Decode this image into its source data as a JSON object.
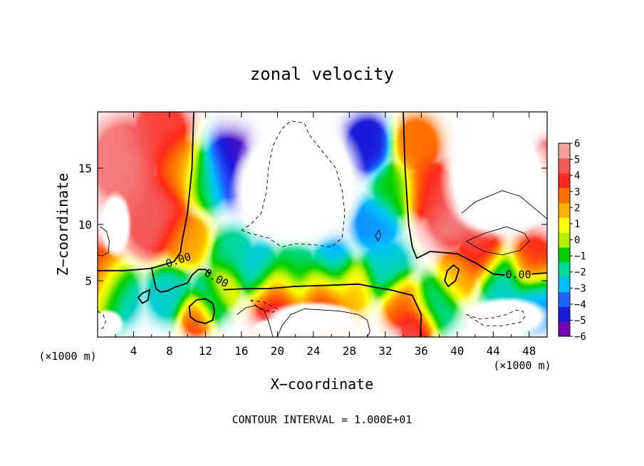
{
  "chart_data": {
    "type": "heatmap",
    "title": "zonal velocity",
    "xlabel": "X−coordinate",
    "ylabel": "Z−coordinate",
    "x_unit_left": "(×1000 m)",
    "x_unit_right": "(×1000 m)",
    "footer": "CONTOUR INTERVAL = 1.000E+01",
    "xlim": [
      0,
      50
    ],
    "ylim": [
      0,
      20
    ],
    "x_ticks": [
      4,
      8,
      12,
      16,
      20,
      24,
      28,
      32,
      36,
      40,
      44,
      48
    ],
    "x_tick_labels": [
      "4",
      "8",
      "12",
      "16",
      "20",
      "24",
      "28",
      "32",
      "36",
      "40",
      "44",
      "48"
    ],
    "y_ticks": [
      5,
      10,
      15
    ],
    "y_tick_labels": [
      "5",
      "10",
      "15"
    ],
    "colorbar": {
      "min": -6,
      "max": 6,
      "labels": [
        "6",
        "5",
        "4",
        "3",
        "2",
        "1",
        "0",
        "−1",
        "−2",
        "−3",
        "−4",
        "−5",
        "−6"
      ],
      "colors": [
        "#7a00b4",
        "#1a1ad8",
        "#1e64ff",
        "#00c0ff",
        "#00d89c",
        "#00d000",
        "#b4f000",
        "#ffff00",
        "#ffb000",
        "#ff7000",
        "#ff2a1a",
        "#f45a5a",
        "#f5a0a0"
      ]
    },
    "contour_labels": [
      "0.00",
      "0.00",
      "0.00"
    ],
    "contour_label_positions": [
      [
        9,
        6.8
      ],
      [
        13.2,
        5.2
      ],
      [
        46.8,
        5.5
      ]
    ],
    "field_sources": [
      {
        "x": 0.0,
        "z": 5.0,
        "v": 4.0,
        "r": 2.5
      },
      {
        "x": 2.0,
        "z": 3.8,
        "v": -3.0,
        "r": 2.2
      },
      {
        "x": 3.0,
        "z": 15.5,
        "v": 5.5,
        "r": 3.0
      },
      {
        "x": 6.5,
        "z": 11.0,
        "v": 5.0,
        "r": 3.0
      },
      {
        "x": 7.0,
        "z": 18.0,
        "v": 4.5,
        "r": 2.5
      },
      {
        "x": 9.0,
        "z": 15.0,
        "v": 2.5,
        "r": 2.2
      },
      {
        "x": 10.0,
        "z": 8.5,
        "v": 2.0,
        "r": 2.0
      },
      {
        "x": 12.0,
        "z": 14.0,
        "v": -1.5,
        "r": 2.2
      },
      {
        "x": 14.5,
        "z": 15.0,
        "v": -5.5,
        "r": 2.4
      },
      {
        "x": 15.0,
        "z": 7.0,
        "v": -2.0,
        "r": 2.0
      },
      {
        "x": 8.0,
        "z": 4.0,
        "v": -2.5,
        "r": 2.0
      },
      {
        "x": 12.5,
        "z": 3.5,
        "v": -3.0,
        "r": 1.8
      },
      {
        "x": 11.0,
        "z": 2.0,
        "v": 4.0,
        "r": 1.5
      },
      {
        "x": 14.0,
        "z": 4.5,
        "v": 2.0,
        "r": 1.6
      },
      {
        "x": 18.0,
        "z": 5.8,
        "v": -3.0,
        "r": 2.0
      },
      {
        "x": 22.0,
        "z": 5.5,
        "v": -2.0,
        "r": 2.2
      },
      {
        "x": 26.0,
        "z": 6.0,
        "v": -3.5,
        "r": 2.0
      },
      {
        "x": 20.0,
        "z": 3.5,
        "v": 5.0,
        "r": 2.2
      },
      {
        "x": 25.0,
        "z": 4.0,
        "v": 4.5,
        "r": 2.0
      },
      {
        "x": 28.5,
        "z": 4.5,
        "v": 2.0,
        "r": 1.8
      },
      {
        "x": 30.0,
        "z": 17.0,
        "v": -5.0,
        "r": 2.0
      },
      {
        "x": 31.0,
        "z": 10.0,
        "v": -3.5,
        "r": 2.0
      },
      {
        "x": 33.0,
        "z": 13.0,
        "v": -1.0,
        "r": 2.0
      },
      {
        "x": 35.5,
        "z": 17.0,
        "v": 3.0,
        "r": 2.0
      },
      {
        "x": 37.0,
        "z": 13.0,
        "v": 4.0,
        "r": 2.2
      },
      {
        "x": 39.5,
        "z": 11.0,
        "v": 5.5,
        "r": 2.5
      },
      {
        "x": 32.0,
        "z": 6.0,
        "v": -2.5,
        "r": 2.2
      },
      {
        "x": 34.0,
        "z": 3.0,
        "v": 3.5,
        "r": 1.8
      },
      {
        "x": 35.5,
        "z": 1.0,
        "v": 5.0,
        "r": 1.5
      },
      {
        "x": 37.5,
        "z": 3.0,
        "v": -2.0,
        "r": 2.0
      },
      {
        "x": 40.0,
        "z": 5.5,
        "v": 2.0,
        "r": 1.8
      },
      {
        "x": 42.5,
        "z": 7.5,
        "v": 4.5,
        "r": 2.0
      },
      {
        "x": 45.0,
        "z": 5.0,
        "v": -2.5,
        "r": 2.0
      },
      {
        "x": 48.5,
        "z": 6.5,
        "v": 4.0,
        "r": 2.0
      },
      {
        "x": 49.0,
        "z": 3.5,
        "v": -3.5,
        "r": 2.0
      },
      {
        "x": 50.0,
        "z": 16.0,
        "v": 5.5,
        "r": 1.2
      }
    ],
    "white_regions": [
      {
        "x": 22.5,
        "z": 14.0,
        "rx": 7.5,
        "rz": 6.5
      },
      {
        "x": 21.0,
        "z": 13.0,
        "rx": 6.5,
        "rz": 5.0
      },
      {
        "x": 44.5,
        "z": 14.0,
        "rx": 6.5,
        "rz": 5.5
      },
      {
        "x": 45.0,
        "z": 11.5,
        "rx": 5.5,
        "rz": 2.5
      },
      {
        "x": 2.0,
        "z": 10.0,
        "rx": 1.8,
        "rz": 3.0
      },
      {
        "x": 24.0,
        "z": 1.6,
        "rx": 5.5,
        "rz": 1.6
      },
      {
        "x": 20.0,
        "z": 0.8,
        "rx": 3.0,
        "rz": 0.9
      },
      {
        "x": 45.5,
        "z": 1.8,
        "rx": 5.0,
        "rz": 1.8
      },
      {
        "x": 1.0,
        "z": 1.2,
        "rx": 2.0,
        "rz": 1.3
      }
    ],
    "contours_solid": [
      [
        [
          10.7,
          20
        ],
        [
          10.5,
          15
        ],
        [
          10.0,
          11
        ],
        [
          9.4,
          8.5
        ],
        [
          9.2,
          7.5
        ],
        [
          8.5,
          6.7
        ],
        [
          6.0,
          6.1
        ],
        [
          3.0,
          5.9
        ],
        [
          0,
          5.9
        ]
      ],
      [
        [
          6.0,
          6.2
        ],
        [
          6.3,
          5.0
        ],
        [
          6.5,
          4.3
        ],
        [
          7.0,
          4.0
        ],
        [
          7.8,
          4.1
        ],
        [
          8.5,
          4.4
        ],
        [
          10.0,
          4.8
        ],
        [
          10.5,
          5.5
        ],
        [
          11.2,
          6.0
        ],
        [
          12.0,
          6.0
        ],
        [
          12.6,
          5.6
        ]
      ],
      [
        [
          14.0,
          4.2
        ],
        [
          16.5,
          4.3
        ],
        [
          19.0,
          4.3
        ],
        [
          22.0,
          4.5
        ],
        [
          26.0,
          4.6
        ],
        [
          29.0,
          4.7
        ],
        [
          31.0,
          4.4
        ],
        [
          32.5,
          4.2
        ],
        [
          33.5,
          4.0
        ],
        [
          35.0,
          3.7
        ],
        [
          36.0,
          2.0
        ],
        [
          35.9,
          0
        ]
      ],
      [
        [
          34.0,
          20
        ],
        [
          34.2,
          15
        ],
        [
          34.6,
          10
        ],
        [
          35.0,
          8.0
        ],
        [
          35.5,
          7.0
        ],
        [
          37.0,
          7.6
        ],
        [
          40.0,
          7.4
        ],
        [
          42.0,
          6.6
        ],
        [
          44.0,
          5.6
        ],
        [
          45.3,
          5.5
        ]
      ],
      [
        [
          48.3,
          5.6
        ],
        [
          50,
          5.7
        ]
      ],
      [
        [
          38.6,
          5.0
        ],
        [
          39.0,
          4.5
        ],
        [
          39.8,
          5.0
        ],
        [
          40.2,
          6.0
        ],
        [
          39.6,
          6.4
        ],
        [
          38.9,
          5.9
        ],
        [
          38.6,
          5.0
        ]
      ],
      [
        [
          4.5,
          3.5
        ],
        [
          5.0,
          3.9
        ],
        [
          5.8,
          4.2
        ],
        [
          5.6,
          3.3
        ],
        [
          5.0,
          3.0
        ],
        [
          4.5,
          3.5
        ]
      ],
      [
        [
          12.8,
          3.0
        ],
        [
          12.0,
          3.4
        ],
        [
          11.0,
          3.3
        ],
        [
          10.2,
          2.7
        ],
        [
          10.3,
          1.8
        ],
        [
          11.0,
          1.4
        ],
        [
          12.0,
          1.2
        ],
        [
          12.8,
          1.5
        ],
        [
          13.0,
          2.3
        ],
        [
          12.8,
          3.0
        ]
      ]
    ],
    "contours_thin": [
      [
        [
          0.3,
          9.8
        ],
        [
          1.0,
          9.4
        ],
        [
          1.3,
          8.5
        ],
        [
          1.2,
          7.5
        ],
        [
          0.5,
          7.2
        ],
        [
          0,
          7.3
        ]
      ],
      [
        [
          20.0,
          0
        ],
        [
          20.5,
          1.0
        ],
        [
          21.5,
          2.0
        ],
        [
          23.0,
          2.5
        ],
        [
          25.0,
          2.4
        ],
        [
          27.0,
          2.3
        ],
        [
          29.0,
          2.0
        ],
        [
          30.0,
          1.5
        ],
        [
          30.3,
          0.5
        ],
        [
          30.0,
          0
        ]
      ],
      [
        [
          40.5,
          11.0
        ],
        [
          42.0,
          12.0
        ],
        [
          43.5,
          12.5
        ],
        [
          45.0,
          13.0
        ],
        [
          47.0,
          12.5
        ],
        [
          48.5,
          11.5
        ],
        [
          50.0,
          10.5
        ]
      ],
      [
        [
          41.0,
          8.5
        ],
        [
          43.0,
          9.2
        ],
        [
          45.5,
          9.8
        ],
        [
          47.5,
          9.2
        ],
        [
          48.0,
          8.5
        ],
        [
          47.0,
          7.7
        ],
        [
          45.0,
          7.3
        ],
        [
          43.0,
          7.6
        ],
        [
          41.0,
          8.5
        ]
      ],
      [
        [
          31.2,
          8.5
        ],
        [
          31.5,
          9.0
        ],
        [
          31.3,
          9.5
        ],
        [
          30.9,
          9.0
        ],
        [
          31.2,
          8.5
        ]
      ],
      [
        [
          15.5,
          2.0
        ],
        [
          16.5,
          2.6
        ],
        [
          17.5,
          2.8
        ],
        [
          18.5,
          2.4
        ],
        [
          19.0,
          1.4
        ],
        [
          19.5,
          0
        ]
      ]
    ],
    "contours_dashed": [
      [
        [
          16.0,
          9.5
        ],
        [
          17.0,
          9.2
        ],
        [
          19.0,
          8.8
        ],
        [
          20.5,
          8.0
        ],
        [
          22.0,
          8.3
        ],
        [
          24.0,
          8.2
        ],
        [
          26.0,
          8.0
        ],
        [
          27.2,
          8.8
        ],
        [
          27.5,
          11.0
        ],
        [
          27.2,
          13.0
        ],
        [
          26.5,
          15.0
        ],
        [
          25.0,
          16.5
        ],
        [
          23.5,
          18.0
        ],
        [
          23.0,
          19.0
        ],
        [
          21.5,
          19.2
        ],
        [
          20.5,
          18.5
        ],
        [
          19.5,
          17.0
        ],
        [
          19.0,
          15.0
        ],
        [
          18.8,
          13.0
        ],
        [
          18.2,
          11.0
        ],
        [
          17.0,
          10.0
        ],
        [
          16.0,
          9.5
        ]
      ],
      [
        [
          17.0,
          3.3
        ],
        [
          18.5,
          3.1
        ],
        [
          20.0,
          2.5
        ],
        [
          19.5,
          2.2
        ],
        [
          18.0,
          2.5
        ],
        [
          17.0,
          3.3
        ]
      ],
      [
        [
          41.0,
          2.0
        ],
        [
          42.5,
          1.6
        ],
        [
          44.0,
          1.7
        ],
        [
          45.5,
          2.0
        ],
        [
          46.5,
          2.4
        ],
        [
          47.3,
          2.3
        ],
        [
          47.5,
          1.8
        ],
        [
          47.0,
          1.3
        ],
        [
          45.0,
          1.0
        ],
        [
          43.0,
          1.0
        ],
        [
          41.0,
          2.0
        ]
      ],
      [
        [
          0,
          2.3
        ],
        [
          0.6,
          2.0
        ],
        [
          0.9,
          1.4
        ],
        [
          0.6,
          0.8
        ],
        [
          0,
          0.7
        ]
      ]
    ]
  }
}
